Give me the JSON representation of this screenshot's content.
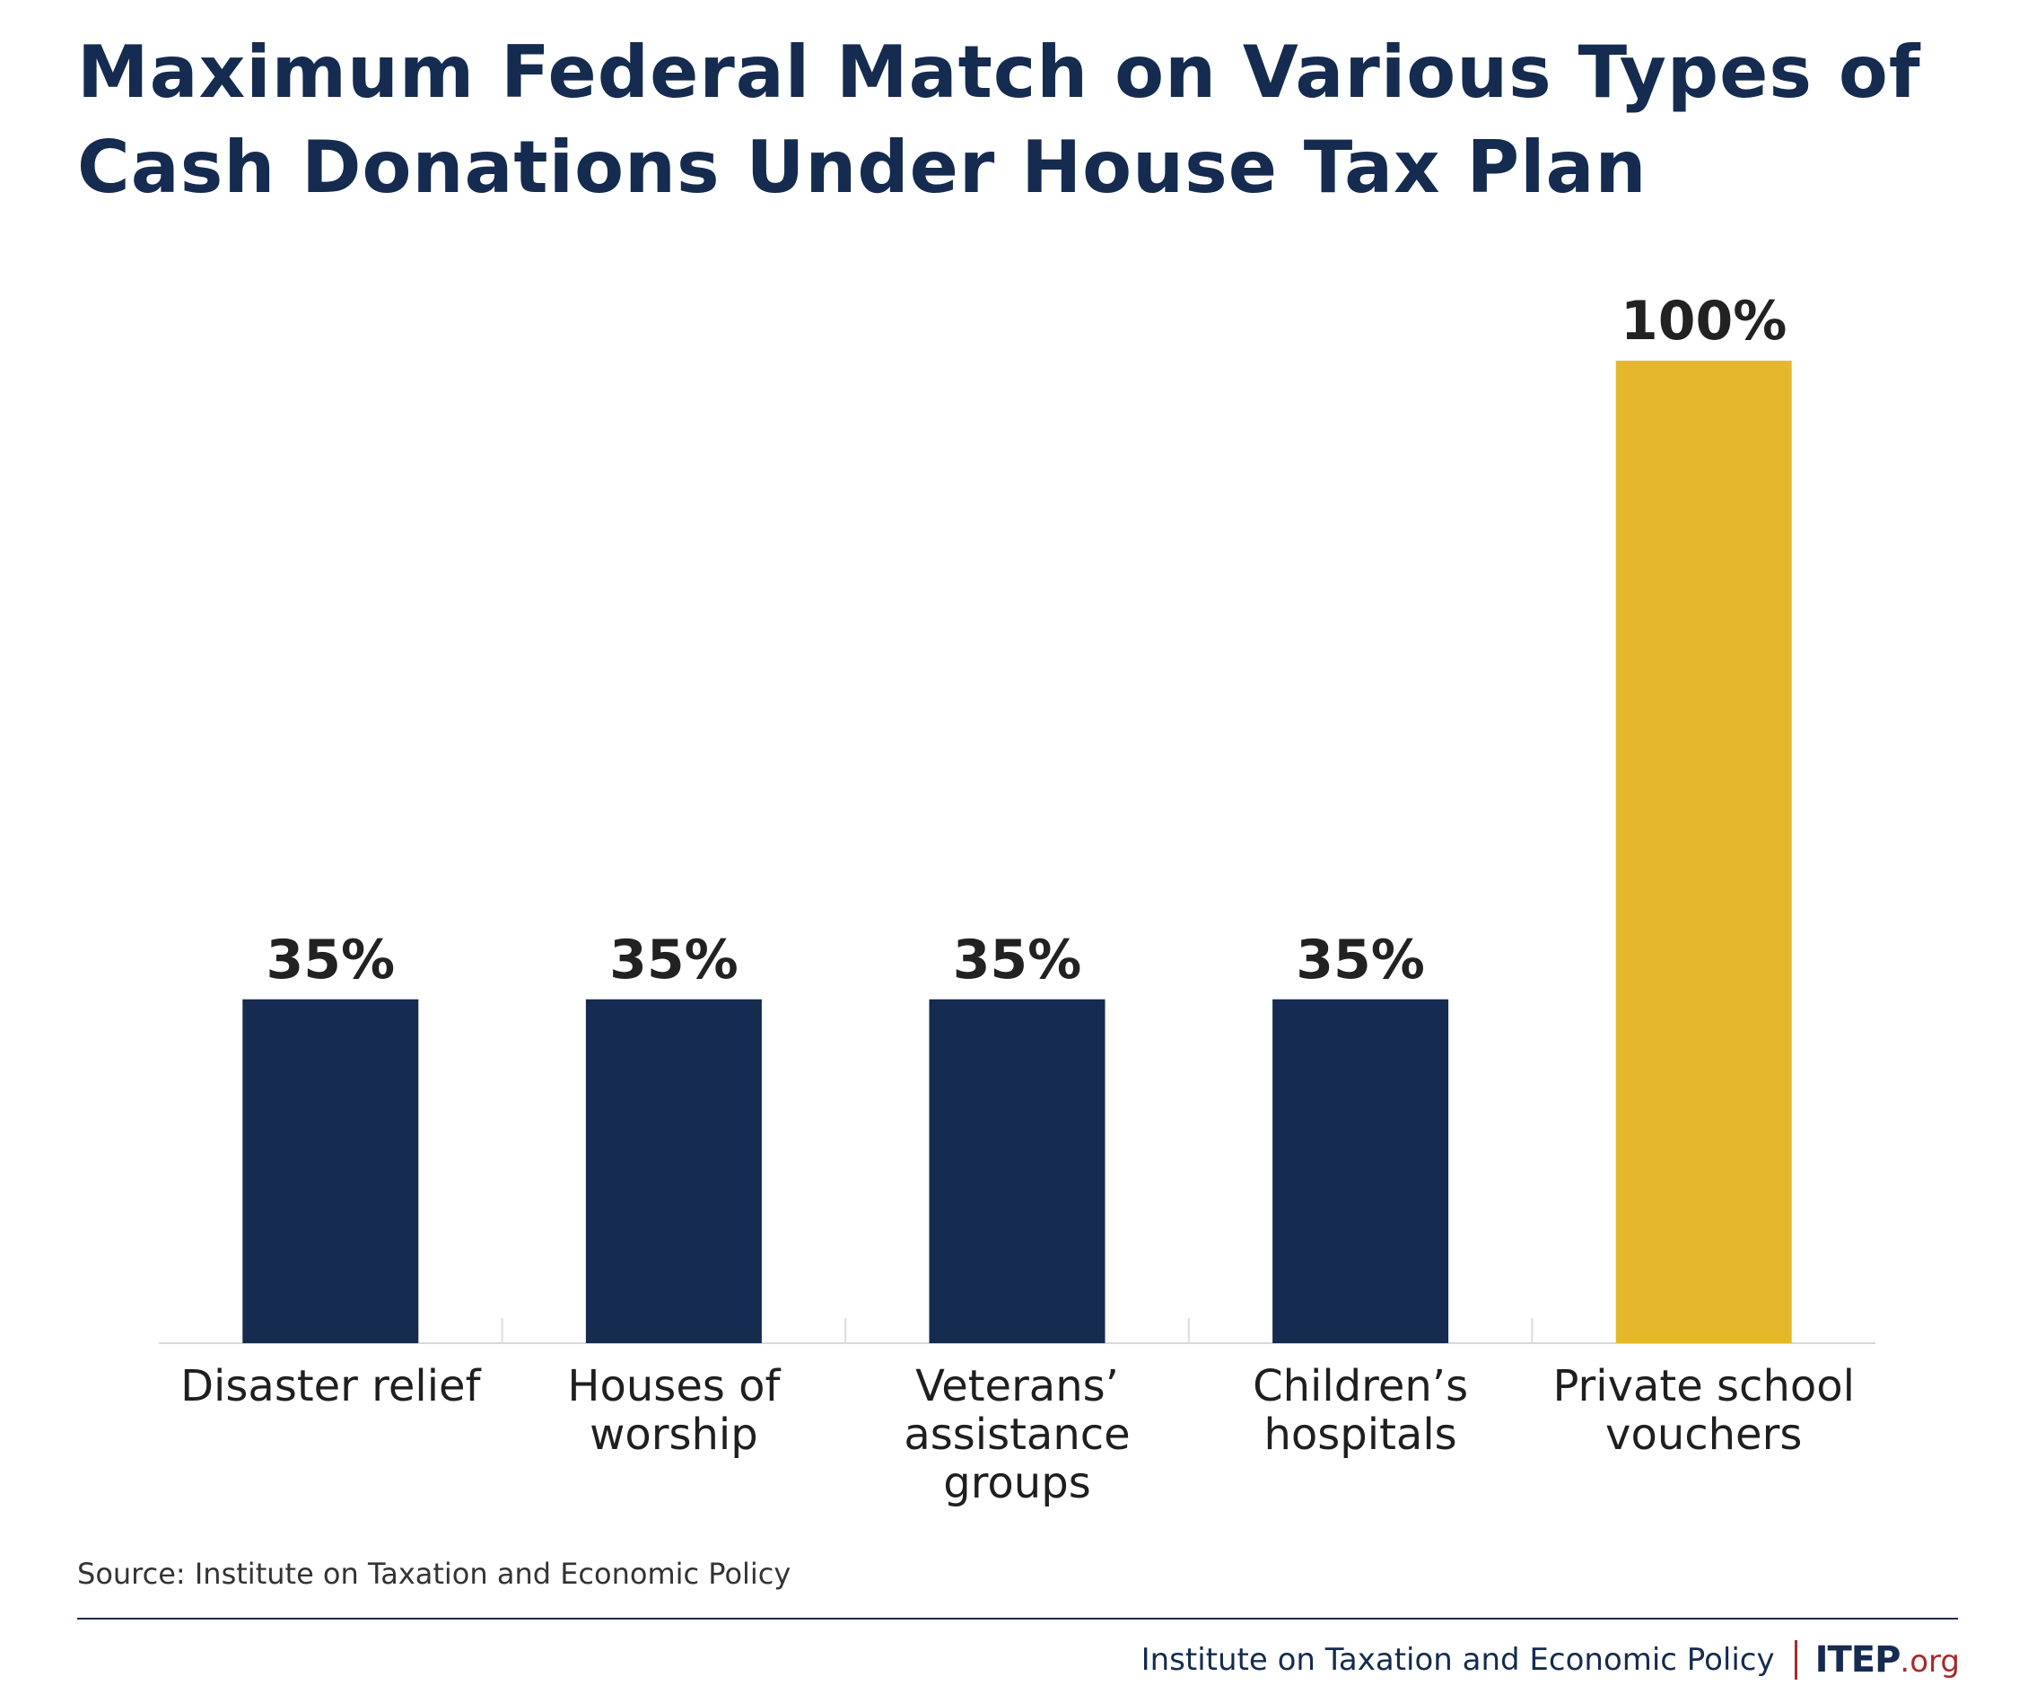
{
  "chart_data": {
    "type": "bar",
    "title": "Maximum Federal Match on Various Types of Cash Donations Under House Tax Plan",
    "categories": [
      [
        "Disaster relief"
      ],
      [
        "Houses of",
        "worship"
      ],
      [
        "Veterans’",
        "assistance",
        "groups"
      ],
      [
        "Children’s",
        "hospitals"
      ],
      [
        "Private school",
        "vouchers"
      ]
    ],
    "values": [
      35,
      35,
      35,
      35,
      100
    ],
    "data_labels": [
      "35%",
      "35%",
      "35%",
      "35%",
      "100%"
    ],
    "bar_colors": [
      "#152b4f",
      "#152b4f",
      "#152b4f",
      "#152b4f",
      "#e4b82a"
    ],
    "ylim": [
      0,
      100
    ],
    "xlabel": "",
    "ylabel": "",
    "grid": false
  },
  "source": "Source: Institute on Taxation and Economic Policy",
  "footer": {
    "org_name": "Institute on Taxation and Economic Policy",
    "logo_main": "ITEP",
    "logo_suffix": ".org"
  },
  "colors": {
    "navy": "#152b4f",
    "gold": "#e4b82a",
    "accent_red": "#a82a2a"
  }
}
